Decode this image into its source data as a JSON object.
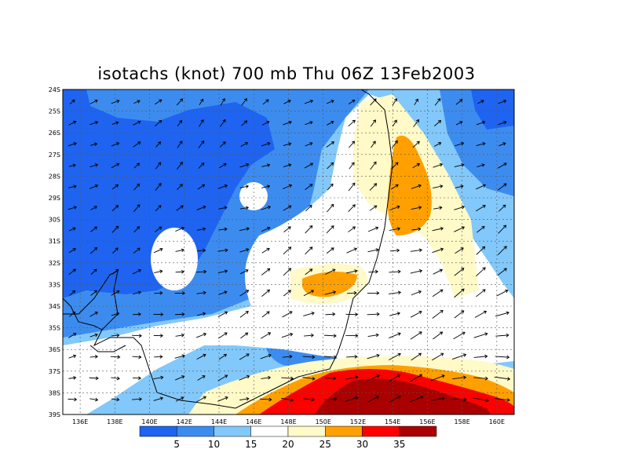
{
  "title": "isotachs (knot) 700 mb Thu 06Z 13Feb2003",
  "map": {
    "lat_labels": [
      "24S",
      "25S",
      "26S",
      "27S",
      "28S",
      "29S",
      "30S",
      "31S",
      "32S",
      "33S",
      "34S",
      "35S",
      "36S",
      "37S",
      "38S",
      "39S"
    ],
    "lon_labels": [
      "136E",
      "138E",
      "140E",
      "142E",
      "144E",
      "146E",
      "148E",
      "150E",
      "152E",
      "154E",
      "156E",
      "158E",
      "160E"
    ],
    "bin_colors": [
      "#1e64f0",
      "#3c8cf0",
      "#82c8fa",
      "#ffffff",
      "#fffac8",
      "#ffa000",
      "#ff0000",
      "#aa0000"
    ]
  },
  "colorbar": {
    "labels": [
      "5",
      "10",
      "15",
      "20",
      "25",
      "30",
      "35"
    ]
  }
}
